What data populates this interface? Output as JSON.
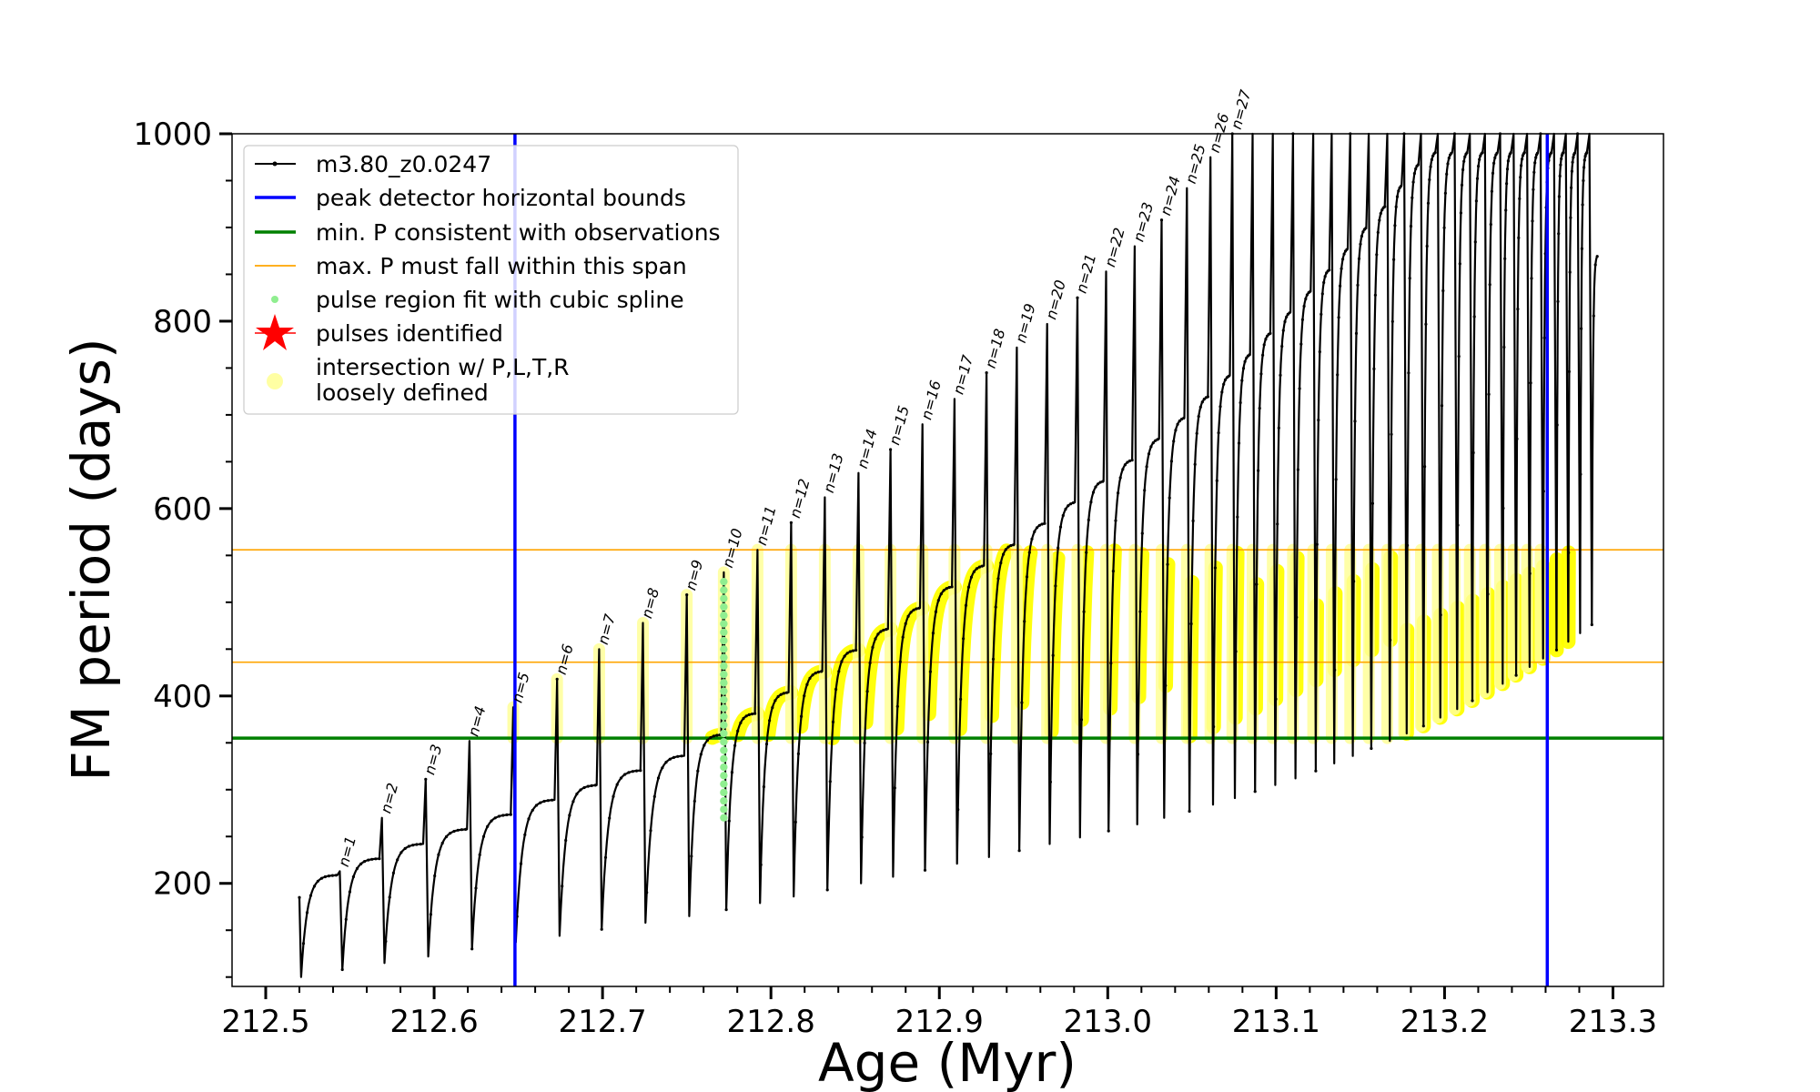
{
  "chart_data": {
    "type": "line",
    "xlabel": "Age (Myr)",
    "ylabel": "FM period (days)",
    "xlim": [
      212.48,
      213.33
    ],
    "ylim": [
      90,
      1000
    ],
    "xticks": [
      "212.5",
      "212.6",
      "212.7",
      "212.8",
      "212.9",
      "213.0",
      "213.1",
      "213.2",
      "213.3"
    ],
    "yticks": [
      "200",
      "400",
      "600",
      "800",
      "1000"
    ],
    "legend": {
      "placement": "upper-left",
      "entries": [
        {
          "label": "m3.80_z0.0247",
          "marker": "line-dot",
          "color": "#000000"
        },
        {
          "label": "peak detector horizontal bounds",
          "marker": "line",
          "color": "#0000ff"
        },
        {
          "label": "min. P consistent with observations",
          "marker": "line",
          "color": "#008000"
        },
        {
          "label": "max. P must fall within this span",
          "marker": "thin-line",
          "color": "#ffa500"
        },
        {
          "label": "pulse region fit with cubic spline",
          "marker": "dot",
          "color": "#90ee90"
        },
        {
          "label": "pulses identified",
          "marker": "star",
          "color": "#ff0000"
        },
        {
          "label": "intersection w/ P,L,T,R",
          "label2": "loosely defined",
          "marker": "circle",
          "color": "#ffff99"
        }
      ]
    },
    "vertical_lines": [
      212.648,
      213.261
    ],
    "min_P_line": 355,
    "max_P_span": [
      436,
      556
    ],
    "spline_pulse_age": 212.772,
    "spline_range": [
      270,
      530
    ],
    "pulses": [
      {
        "n": "n=1",
        "age": 212.544,
        "top": 213,
        "bottom": 108
      },
      {
        "n": "n=2",
        "age": 212.569,
        "top": 270,
        "bottom": 115
      },
      {
        "n": "n=3",
        "age": 212.595,
        "top": 311,
        "bottom": 122
      },
      {
        "n": "n=4",
        "age": 212.621,
        "top": 352,
        "bottom": 130
      },
      {
        "n": "n=5",
        "age": 212.647,
        "top": 388,
        "bottom": 137
      },
      {
        "n": "n=6",
        "age": 212.673,
        "top": 418,
        "bottom": 144
      },
      {
        "n": "n=7",
        "age": 212.698,
        "top": 450,
        "bottom": 151
      },
      {
        "n": "n=8",
        "age": 212.724,
        "top": 478,
        "bottom": 158
      },
      {
        "n": "n=9",
        "age": 212.75,
        "top": 508,
        "bottom": 165
      },
      {
        "n": "n=10",
        "age": 212.772,
        "top": 532,
        "bottom": 172
      },
      {
        "n": "n=11",
        "age": 212.792,
        "top": 556,
        "bottom": 179
      },
      {
        "n": "n=12",
        "age": 212.812,
        "top": 585,
        "bottom": 186
      },
      {
        "n": "n=13",
        "age": 212.832,
        "top": 612,
        "bottom": 193
      },
      {
        "n": "n=14",
        "age": 212.852,
        "top": 638,
        "bottom": 200
      },
      {
        "n": "n=15",
        "age": 212.871,
        "top": 663,
        "bottom": 207
      },
      {
        "n": "n=16",
        "age": 212.89,
        "top": 690,
        "bottom": 214
      },
      {
        "n": "n=17",
        "age": 212.909,
        "top": 717,
        "bottom": 221
      },
      {
        "n": "n=18",
        "age": 212.928,
        "top": 745,
        "bottom": 228
      },
      {
        "n": "n=19",
        "age": 212.946,
        "top": 772,
        "bottom": 235
      },
      {
        "n": "n=20",
        "age": 212.964,
        "top": 797,
        "bottom": 242
      },
      {
        "n": "n=21",
        "age": 212.982,
        "top": 825,
        "bottom": 249
      },
      {
        "n": "n=22",
        "age": 212.999,
        "top": 853,
        "bottom": 256
      },
      {
        "n": "n=23",
        "age": 213.016,
        "top": 880,
        "bottom": 263
      },
      {
        "n": "n=24",
        "age": 213.032,
        "top": 908,
        "bottom": 270
      },
      {
        "n": "n=25",
        "age": 213.047,
        "top": 942,
        "bottom": 277
      },
      {
        "n": "n=26",
        "age": 213.061,
        "top": 975,
        "bottom": 284
      },
      {
        "n": "n=27",
        "age": 213.074,
        "top": 1000,
        "bottom": 291
      },
      {
        "n": "",
        "age": 213.086,
        "top": 1000,
        "bottom": 298
      },
      {
        "n": "",
        "age": 213.098,
        "top": 1000,
        "bottom": 305
      },
      {
        "n": "",
        "age": 213.11,
        "top": 1000,
        "bottom": 312
      },
      {
        "n": "",
        "age": 213.122,
        "top": 1000,
        "bottom": 320
      },
      {
        "n": "",
        "age": 213.133,
        "top": 1000,
        "bottom": 328
      },
      {
        "n": "",
        "age": 213.144,
        "top": 1000,
        "bottom": 336
      },
      {
        "n": "",
        "age": 213.155,
        "top": 1000,
        "bottom": 344
      },
      {
        "n": "",
        "age": 213.166,
        "top": 1000,
        "bottom": 352
      },
      {
        "n": "",
        "age": 213.176,
        "top": 1000,
        "bottom": 360
      },
      {
        "n": "",
        "age": 213.186,
        "top": 1000,
        "bottom": 368
      },
      {
        "n": "",
        "age": 213.196,
        "top": 1000,
        "bottom": 377
      },
      {
        "n": "",
        "age": 213.206,
        "top": 1000,
        "bottom": 386
      },
      {
        "n": "",
        "age": 213.215,
        "top": 1000,
        "bottom": 395
      },
      {
        "n": "",
        "age": 213.224,
        "top": 1000,
        "bottom": 404
      },
      {
        "n": "",
        "age": 213.233,
        "top": 1000,
        "bottom": 413
      },
      {
        "n": "",
        "age": 213.241,
        "top": 1000,
        "bottom": 422
      },
      {
        "n": "",
        "age": 213.249,
        "top": 1000,
        "bottom": 431
      },
      {
        "n": "",
        "age": 213.257,
        "top": 1000,
        "bottom": 440
      },
      {
        "n": "",
        "age": 213.265,
        "top": 1000,
        "bottom": 449
      },
      {
        "n": "",
        "age": 213.272,
        "top": 1000,
        "bottom": 458
      },
      {
        "n": "",
        "age": 213.279,
        "top": 1000,
        "bottom": 467
      },
      {
        "n": "",
        "age": 213.286,
        "top": 1000,
        "bottom": 476
      }
    ],
    "series_start": {
      "age": 212.52,
      "period": 185
    },
    "series_end": {
      "age": 213.291,
      "period": 870
    }
  }
}
